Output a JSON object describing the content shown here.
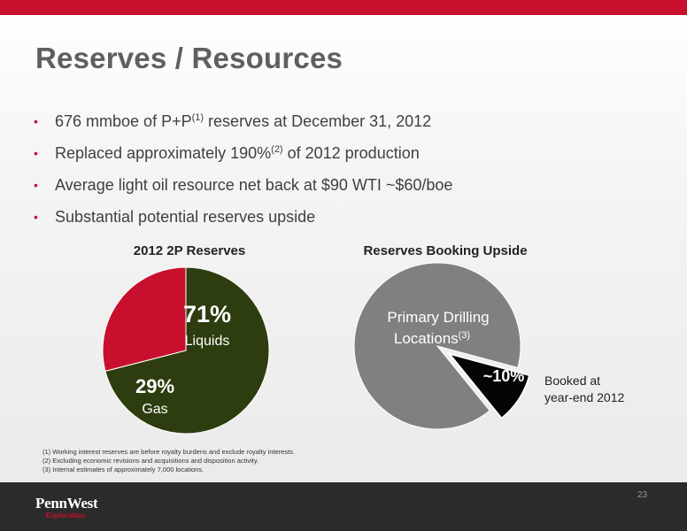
{
  "title": "Reserves / Resources",
  "bullets": [
    {
      "pre": "676 mmboe of P+P",
      "sup": "(1)",
      "post": " reserves at December 31, 2012"
    },
    {
      "pre": "Replaced approximately 190%",
      "sup": "(2)",
      "post": " of 2012 production"
    },
    {
      "pre": "Average light oil resource net back at $90 WTI ~$60/boe",
      "sup": "",
      "post": ""
    },
    {
      "pre": "Substantial potential reserves upside",
      "sup": "",
      "post": ""
    }
  ],
  "bullet_char": "•",
  "chart_data": [
    {
      "type": "pie",
      "title": "2012 2P Reserves",
      "slices": [
        {
          "value": 71,
          "pct_label": "71%",
          "name": "Liquids",
          "color": "#2d3d0f"
        },
        {
          "value": 29,
          "pct_label": "29%",
          "name": "Gas",
          "color": "#c8102e"
        }
      ]
    },
    {
      "type": "pie",
      "title": "Reserves Booking Upside",
      "slices": [
        {
          "value": 90,
          "pct_label": "",
          "name": "Primary Drilling Locations",
          "name_sup": "(3)",
          "color": "#808080"
        },
        {
          "value": 10,
          "pct_label": "~10%",
          "name": "Booked at year-end 2012",
          "color": "#050505",
          "exploded": true
        }
      ]
    }
  ],
  "side_label": {
    "line1": "Booked at",
    "line2": "year-end 2012"
  },
  "footnotes": [
    "(1) Working interest reserves are before royalty burdens and exclude royalty interests.",
    "(2) Excluding economic revisions and acquisitions and disposition activity.",
    "(3) Internal estimates of approximately 7,000 locations."
  ],
  "logo": {
    "name": "PennWest",
    "sub": "Exploration"
  },
  "page_number": "23",
  "colors": {
    "accent": "#c8102e",
    "footer": "#2b2b2b",
    "title": "#5f5f5f"
  }
}
